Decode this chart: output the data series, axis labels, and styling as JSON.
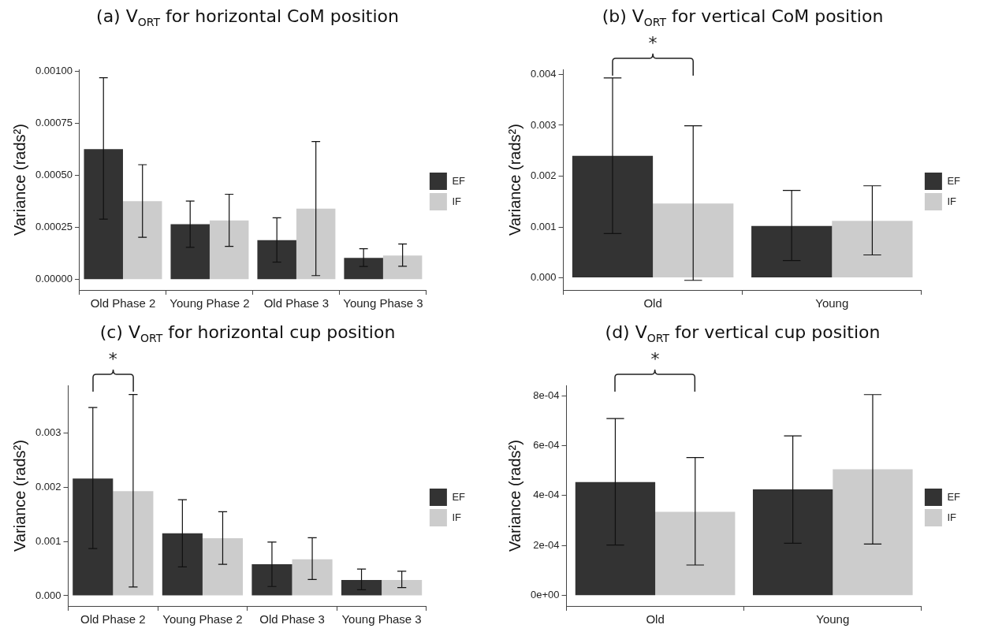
{
  "chart_data": [
    {
      "type": "bar",
      "title": "(a) V$_{ORT}$ for horizontal CoM position",
      "ylabel": "Variance (rads²)",
      "categories": [
        "Old Phase 2",
        "Young Phase 2",
        "Old Phase 3",
        "Young Phase 3"
      ],
      "series": [
        {
          "name": "EF",
          "color": "#333333",
          "values": [
            0.000627,
            0.000266,
            0.000189,
            0.000104
          ],
          "errors": [
            [
              0.00029,
              0.00097
            ],
            [
              0.000155,
              0.000377
            ],
            [
              8.4e-05,
              0.000297
            ],
            [
              6.3e-05,
              0.000148
            ]
          ]
        },
        {
          "name": "IF",
          "color": "#cccccc",
          "values": [
            0.000377,
            0.000284,
            0.000341,
            0.000116
          ],
          "errors": [
            [
              0.000203,
              0.000552
            ],
            [
              0.00016,
              0.00041
            ],
            [
              1.9e-05,
              0.000663
            ],
            [
              6.4e-05,
              0.000171
            ]
          ]
        }
      ],
      "ylim": [
        -5e-05,
        0.00101
      ],
      "yticks": [
        {
          "value": 0,
          "label": "0.00000"
        },
        {
          "value": 0.00025,
          "label": "0.00025"
        },
        {
          "value": 0.0005,
          "label": "0.00050"
        },
        {
          "value": 0.00075,
          "label": "0.00075"
        },
        {
          "value": 0.001,
          "label": "0.00100"
        }
      ],
      "grid": false,
      "legend": "right"
    },
    {
      "type": "bar",
      "title": "(b) V$_{ORT}$ for vertical CoM position",
      "ylabel": "Variance (rads²)",
      "categories": [
        "Old",
        "Young"
      ],
      "series": [
        {
          "name": "EF",
          "color": "#333333",
          "values": [
            0.0024,
            0.00102
          ],
          "errors": [
            [
              0.00087,
              0.00393
            ],
            [
              0.00034,
              0.00172
            ]
          ]
        },
        {
          "name": "IF",
          "color": "#cccccc",
          "values": [
            0.00146,
            0.00112
          ],
          "errors": [
            [
              -5e-05,
              0.00299
            ],
            [
              0.00045,
              0.00181
            ]
          ]
        }
      ],
      "ylim": [
        -0.00024,
        0.0041
      ],
      "yticks": [
        {
          "value": 0,
          "label": "0.000"
        },
        {
          "value": 0.001,
          "label": "0.001"
        },
        {
          "value": 0.002,
          "label": "0.002"
        },
        {
          "value": 0.003,
          "label": "0.003"
        },
        {
          "value": 0.004,
          "label": "0.004"
        }
      ],
      "grid": false,
      "legend": "right",
      "annotations": [
        "*"
      ]
    },
    {
      "type": "bar",
      "title": "(c) V$_{ORT}$ for horizontal cup position",
      "ylabel": "Variance (rads²)",
      "categories": [
        "Old Phase 2",
        "Young Phase 2",
        "Old Phase 3",
        "Young Phase 3"
      ],
      "series": [
        {
          "name": "EF",
          "color": "#333333",
          "values": [
            0.00216,
            0.00115,
            0.00058,
            0.00029
          ],
          "errors": [
            [
              0.00087,
              0.00347
            ],
            [
              0.00053,
              0.00177
            ],
            [
              0.00017,
              0.00099
            ],
            [
              0.00011,
              0.00049
            ]
          ]
        },
        {
          "name": "IF",
          "color": "#cccccc",
          "values": [
            0.00193,
            0.00106,
            0.00067,
            0.00029
          ],
          "errors": [
            [
              0.00016,
              0.00371
            ],
            [
              0.00058,
              0.00155
            ],
            [
              0.0003,
              0.00107
            ],
            [
              0.00015,
              0.00045
            ]
          ]
        }
      ],
      "ylim": [
        -0.00019,
        0.00388
      ],
      "yticks": [
        {
          "value": 0,
          "label": "0.000"
        },
        {
          "value": 0.001,
          "label": "0.001"
        },
        {
          "value": 0.002,
          "label": "0.002"
        },
        {
          "value": 0.003,
          "label": "0.003"
        }
      ],
      "grid": false,
      "legend": "right",
      "annotations": [
        "*"
      ]
    },
    {
      "type": "bar",
      "title": "(d) V$_{ORT}$ for vertical cup position",
      "ylabel": "Variance (rads²)",
      "categories": [
        "Old",
        "Young"
      ],
      "series": [
        {
          "name": "EF",
          "color": "#333333",
          "values": [
            0.000454,
            0.000425
          ],
          "errors": [
            [
              0.000202,
              0.000708
            ],
            [
              0.000209,
              0.000639
            ]
          ]
        },
        {
          "name": "IF",
          "color": "#cccccc",
          "values": [
            0.000335,
            0.000505
          ],
          "errors": [
            [
              0.000122,
              0.000552
            ],
            [
              0.000206,
              0.000804
            ]
          ]
        }
      ],
      "ylim": [
        -4.2e-05,
        0.000841
      ],
      "yticks": [
        {
          "value": 0,
          "label": "0e+00"
        },
        {
          "value": 0.0002,
          "label": "2e-04"
        },
        {
          "value": 0.0004,
          "label": "4e-04"
        },
        {
          "value": 0.0006,
          "label": "6e-04"
        },
        {
          "value": 0.0008,
          "label": "8e-04"
        }
      ],
      "grid": false,
      "legend": "right",
      "annotations": [
        "*"
      ]
    }
  ]
}
